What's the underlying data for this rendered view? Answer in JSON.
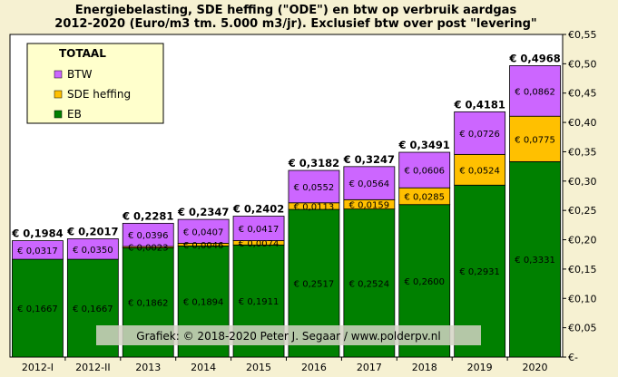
{
  "chart_data": {
    "type": "bar",
    "stacked": true,
    "title_lines": [
      "Energiebelasting, SDE heffing (\"ODE\") en btw op verbruik aardgas",
      "2012-2020 (Euro/m3 tm. 5.000 m3/jr). Exclusief btw over post \"levering\""
    ],
    "categories": [
      "2012-I",
      "2012-II",
      "2013",
      "2014",
      "2015",
      "2016",
      "2017",
      "2018",
      "2019",
      "2020"
    ],
    "series": [
      {
        "name": "EB",
        "color": "#008000",
        "values": [
          0.1667,
          0.1667,
          0.1862,
          0.1894,
          0.1911,
          0.2517,
          0.2524,
          0.26,
          0.2931,
          0.3331
        ],
        "labels": [
          "€ 0,1667",
          "€ 0,1667",
          "€ 0,1862",
          "€ 0,1894",
          "€ 0,1911",
          "€ 0,2517",
          "€ 0,2524",
          "€ 0,2600",
          "€ 0,2931",
          "€ 0,3331"
        ]
      },
      {
        "name": "SDE heffing",
        "color": "#ffc000",
        "values": [
          0,
          0,
          0.0023,
          0.0046,
          0.0074,
          0.0113,
          0.0159,
          0.0285,
          0.0524,
          0.0775
        ],
        "labels": [
          "",
          "",
          "€ 0,0023",
          "€ 0,0046",
          "€ 0,0074",
          "€ 0,0113",
          "€ 0,0159",
          "€ 0,0285",
          "€ 0,0524",
          "€ 0,0775"
        ]
      },
      {
        "name": "BTW",
        "color": "#cc66ff",
        "values": [
          0.0317,
          0.035,
          0.0396,
          0.0407,
          0.0417,
          0.0552,
          0.0564,
          0.0606,
          0.0726,
          0.0862
        ],
        "labels": [
          "€ 0,0317",
          "€ 0,0350",
          "€ 0,0396",
          "€ 0,0407",
          "€ 0,0417",
          "€ 0,0552",
          "€ 0,0564",
          "€ 0,0606",
          "€ 0,0726",
          "€ 0,0862"
        ]
      }
    ],
    "totals": [
      "€ 0,1984",
      "€ 0,2017",
      "€ 0,2281",
      "€ 0,2347",
      "€ 0,2402",
      "€ 0,3182",
      "€ 0,3247",
      "€ 0,3491",
      "€ 0,4181",
      "€ 0,4968"
    ],
    "ylim": [
      0,
      0.55
    ],
    "y_ticks": [
      0,
      0.05,
      0.1,
      0.15,
      0.2,
      0.25,
      0.3,
      0.35,
      0.4,
      0.45,
      0.5,
      0.55
    ],
    "y_tick_labels": [
      "€-",
      "€0,05",
      "€0,10",
      "€0,15",
      "€0,20",
      "€0,25",
      "€0,30",
      "€0,35",
      "€0,40",
      "€0,45",
      "€0,50",
      "€0,55"
    ],
    "y_axis_side": "right",
    "grid": false,
    "legend": {
      "title": "TOTAAL",
      "placement": "top-left",
      "entries": [
        {
          "label": "BTW",
          "color": "#cc66ff"
        },
        {
          "label": "SDE heffing",
          "color": "#ffc000"
        },
        {
          "label": "EB",
          "color": "#008000"
        }
      ]
    },
    "credit": "Grafiek:  © 2018-2020   Peter J. Segaar  /  www.polderpv.nl",
    "plot_background": "#ffffff",
    "page_background": "#f6f1d2"
  }
}
